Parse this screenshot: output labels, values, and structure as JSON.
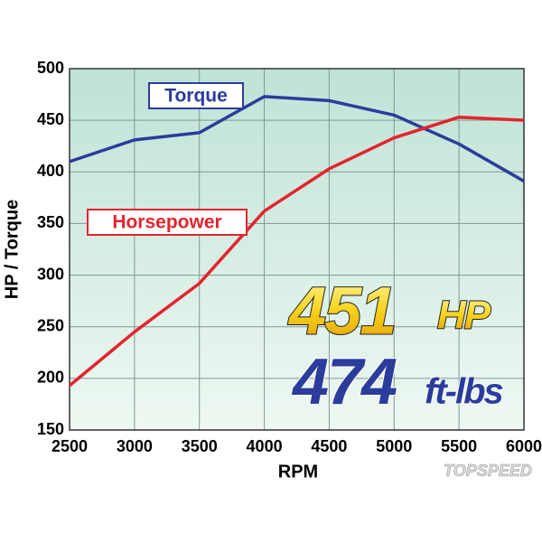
{
  "chart_data": {
    "type": "line",
    "x": [
      2500,
      3000,
      3500,
      4000,
      4500,
      5000,
      5500,
      6000
    ],
    "series": [
      {
        "name": "Torque",
        "color": "#2b3c9c",
        "values": [
          410,
          431,
          438,
          473,
          469,
          455,
          427,
          391
        ]
      },
      {
        "name": "Horsepower",
        "color": "#e3242e",
        "values": [
          193,
          245,
          292,
          362,
          403,
          433,
          453,
          450
        ]
      }
    ],
    "xlim": [
      2500,
      6000
    ],
    "xticks": [
      2500,
      3000,
      3500,
      4000,
      4500,
      5000,
      5500,
      6000
    ],
    "ylim": [
      150,
      500
    ],
    "yticks": [
      150,
      200,
      250,
      300,
      350,
      400,
      450,
      500
    ],
    "grid": true,
    "x_label": "RPM",
    "y_label": "HP / Torque",
    "annotations": [
      "451",
      "HP",
      "474",
      "ft-lbs"
    ],
    "watermark": "TOPSPEED"
  }
}
